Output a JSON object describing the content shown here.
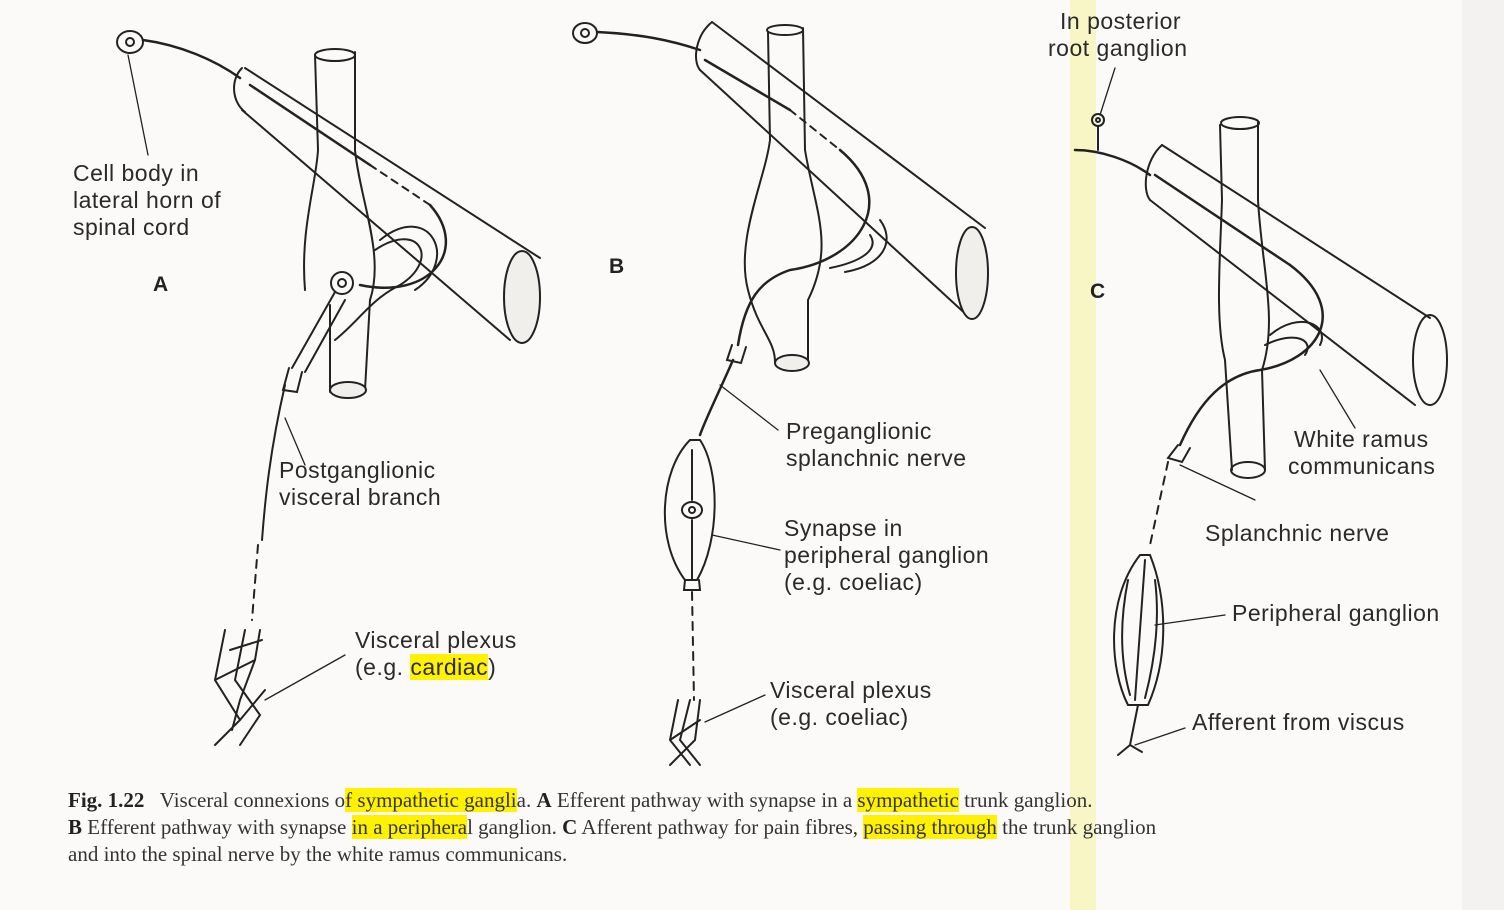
{
  "panels": {
    "a": {
      "letter": "A",
      "cell_body_label": [
        "Cell body in",
        "lateral horn of",
        "spinal cord"
      ],
      "postganglionic_label": [
        "Postganglionic",
        "visceral branch"
      ],
      "plexus_label": [
        "Visceral plexus",
        "(e.g. ",
        "cardiac",
        ")"
      ]
    },
    "b": {
      "letter": "B",
      "preganglionic_label": [
        "Preganglionic",
        "splanchnic nerve"
      ],
      "synapse_label": [
        "Synapse in",
        "peripheral ganglion",
        "(e.g. coeliac)"
      ],
      "plexus_label": [
        "Visceral plexus",
        "(e.g. coeliac)"
      ]
    },
    "c": {
      "letter": "C",
      "posterior_root_label": [
        "In posterior",
        "root ganglion"
      ],
      "white_ramus_label": [
        "White ramus",
        "communicans"
      ],
      "splanchnic_label": "Splanchnic nerve",
      "peripheral_ganglion_label": "Peripheral ganglion",
      "afferent_label": "Afferent from viscus"
    }
  },
  "caption": {
    "fig": "Fig. 1.22",
    "t1": "Visceral connexions o",
    "t2": "f sympathetic gangli",
    "t3": "a. ",
    "a": "A",
    "t4": " Efferent pathway with synapse in a ",
    "t5": "sympathetic",
    "t6": " trunk ganglion.",
    "b": "B",
    "t7": " Efferent pathway with synapse ",
    "t8": "in a periphera",
    "t9": "l ganglion. ",
    "c": "C",
    "t10": " Afferent pathway for pain fibres, ",
    "t11": "passing through",
    "t12": " the trunk ganglion",
    "t13": "and into the spinal nerve by the white ramus communicans."
  },
  "colors": {
    "highlight": "#fff200",
    "ink": "#222222",
    "page": "#fbfaf8"
  }
}
